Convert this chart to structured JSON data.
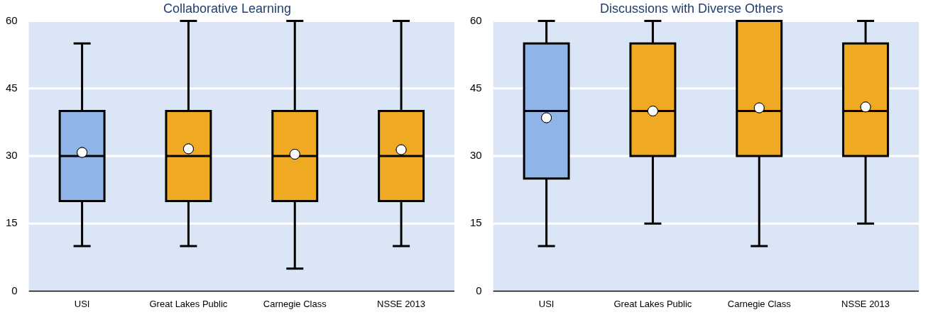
{
  "chart_data": [
    {
      "type": "box",
      "title": "Collaborative Learning",
      "categories": [
        "USI",
        "Great Lakes Public",
        "Carnegie Class",
        "NSSE 2013"
      ],
      "colors": [
        "#8eb4e8",
        "#f0a923",
        "#f0a923",
        "#f0a923"
      ],
      "boxes": [
        {
          "low": 10,
          "q1": 20,
          "median": 30,
          "q3": 40,
          "high": 55,
          "mean": 30.8
        },
        {
          "low": 10,
          "q1": 20,
          "median": 30,
          "q3": 40,
          "high": 60,
          "mean": 31.6
        },
        {
          "low": 5,
          "q1": 20,
          "median": 30,
          "q3": 40,
          "high": 60,
          "mean": 30.4
        },
        {
          "low": 10,
          "q1": 20,
          "median": 30,
          "q3": 40,
          "high": 60,
          "mean": 31.4
        }
      ],
      "ylim": [
        0,
        60
      ],
      "yticks": [
        0,
        15,
        30,
        45,
        60
      ],
      "grid": "y",
      "legend": false
    },
    {
      "type": "box",
      "title": "Discussions with Diverse Others",
      "categories": [
        "USI",
        "Great Lakes Public",
        "Carnegie Class",
        "NSSE 2013"
      ],
      "colors": [
        "#8eb4e8",
        "#f0a923",
        "#f0a923",
        "#f0a923"
      ],
      "boxes": [
        {
          "low": 10,
          "q1": 25,
          "median": 40,
          "q3": 55,
          "high": 60,
          "mean": 38.5
        },
        {
          "low": 15,
          "q1": 30,
          "median": 40,
          "q3": 55,
          "high": 60,
          "mean": 40
        },
        {
          "low": 10,
          "q1": 30,
          "median": 40,
          "q3": 60,
          "high": 60,
          "mean": 40.7
        },
        {
          "low": 15,
          "q1": 30,
          "median": 40,
          "q3": 55,
          "high": 60,
          "mean": 40.9
        }
      ],
      "ylim": [
        0,
        60
      ],
      "yticks": [
        0,
        15,
        30,
        45,
        60
      ],
      "grid": "y",
      "legend": false
    }
  ]
}
